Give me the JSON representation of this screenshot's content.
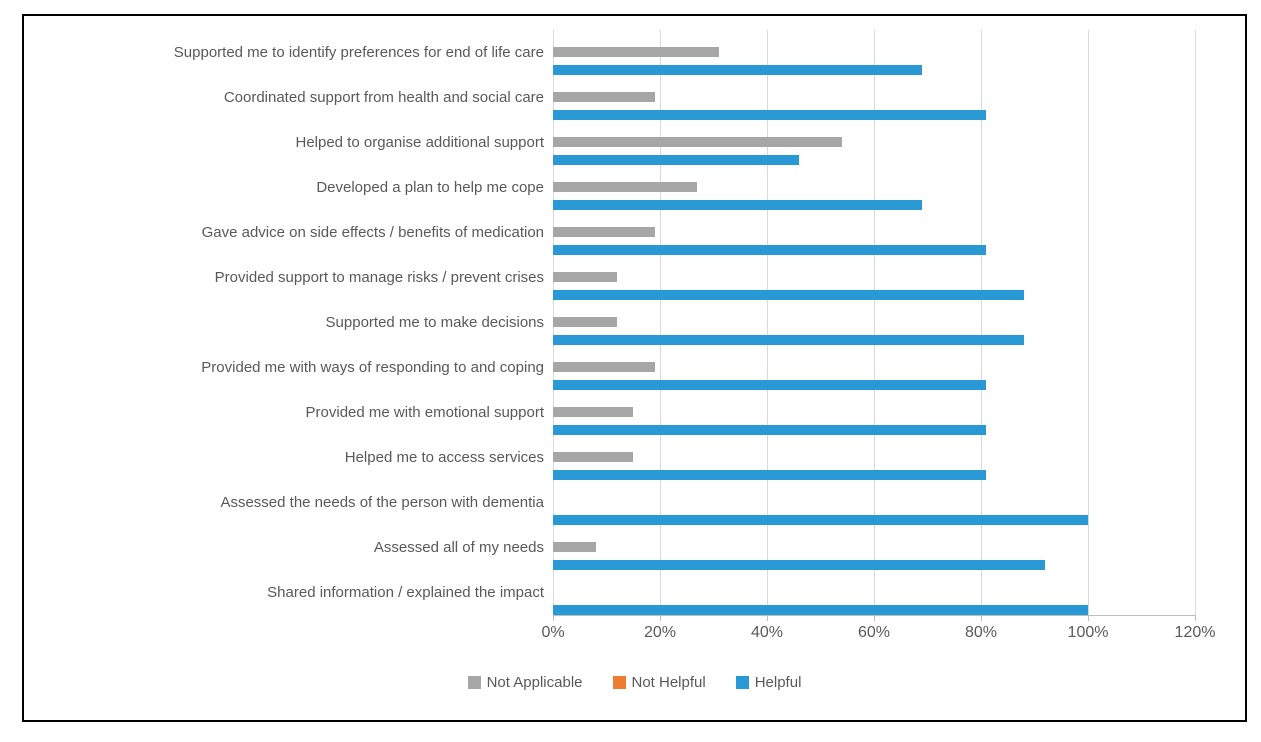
{
  "chart_data": {
    "type": "bar",
    "orientation": "horizontal",
    "title": "",
    "xlabel": "",
    "ylabel": "",
    "grid": true,
    "categories": [
      "Supported me to identify preferences for end of life care",
      "Coordinated support from  health and social care",
      "Helped to organise additional support",
      "Developed a plan to help me cope",
      "Gave advice on side effects / benefits of medication",
      "Provided support to manage risks / prevent crises",
      "Supported me to make decisions",
      "Provided me with ways of responding to and coping",
      "Provided me with emotional support",
      "Helped me to access services",
      "Assessed the needs of the person with dementia",
      "Assessed all of my needs",
      "Shared information / explained the impact"
    ],
    "series": [
      {
        "name": "Not Applicable",
        "color": "#a6a6a6",
        "values": [
          31,
          19,
          54,
          27,
          19,
          12,
          12,
          19,
          15,
          15,
          0,
          8,
          0
        ]
      },
      {
        "name": "Not Helpful",
        "color": "#ed7d31",
        "values": [
          0,
          0,
          0,
          0,
          0,
          0,
          0,
          0,
          0,
          0,
          0,
          0,
          0
        ]
      },
      {
        "name": "Helpful",
        "color": "#2999d6",
        "values": [
          69,
          81,
          46,
          69,
          81,
          88,
          88,
          81,
          81,
          81,
          100,
          92,
          100
        ]
      }
    ],
    "x_axis": {
      "min": 0,
      "max": 120,
      "step": 20,
      "unit": "%",
      "tick_labels": [
        "0%",
        "20%",
        "40%",
        "60%",
        "80%",
        "100%",
        "120%"
      ]
    },
    "legend": {
      "position": "bottom",
      "entries": [
        "Not Applicable",
        "Not Helpful",
        "Helpful"
      ]
    }
  },
  "colors": {
    "grid": "#d9d9d9",
    "axis": "#bfbfbf",
    "text": "#595959",
    "frame_border": "#000000",
    "background": "#ffffff"
  }
}
